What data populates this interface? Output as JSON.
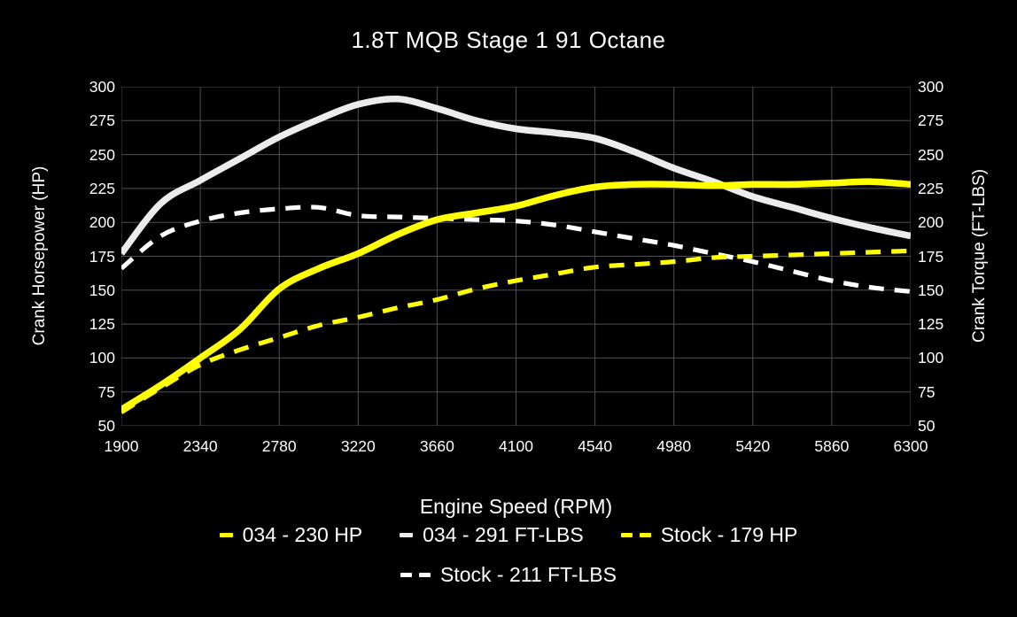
{
  "title": "1.8T MQB Stage 1 91 Octane",
  "axes": {
    "left_label": "Crank Horsepower (HP)",
    "right_label": "Crank Torque (FT-LBS)",
    "x_label": "Engine Speed (RPM)",
    "y_ticks": [
      300,
      275,
      250,
      225,
      200,
      175,
      150,
      125,
      100,
      75,
      50
    ],
    "x_ticks": [
      1900,
      2340,
      2780,
      3220,
      3660,
      4100,
      4540,
      4980,
      5420,
      5860,
      6300
    ]
  },
  "colors": {
    "background": "#000000",
    "grid": "#4f4f4f",
    "text": "#ffffff",
    "yellow": "#ffff00",
    "white_solid": "#ececec",
    "white_dashed": "#ffffff"
  },
  "legend": [
    {
      "label": "034 - 230 HP",
      "color": "#ffff00",
      "style": "solid"
    },
    {
      "label": "034 - 291 FT-LBS",
      "color": "#ececec",
      "style": "solid"
    },
    {
      "label": "Stock - 179 HP",
      "color": "#ffff00",
      "style": "dashed"
    },
    {
      "label": "Stock - 211 FT-LBS",
      "color": "#ffffff",
      "style": "dashed"
    }
  ],
  "legend_rows": [
    [
      0,
      1,
      2
    ],
    [
      3
    ]
  ],
  "chart_data": {
    "type": "line",
    "title": "1.8T MQB Stage 1 91 Octane",
    "xlabel": "Engine Speed (RPM)",
    "ylabel_left": "Crank Horsepower (HP)",
    "ylabel_right": "Crank Torque (FT-LBS)",
    "xlim": [
      1900,
      6300
    ],
    "ylim": [
      50,
      300
    ],
    "y_step": 25,
    "grid": true,
    "legend_position": "bottom",
    "x": [
      1900,
      2120,
      2340,
      2560,
      2780,
      3000,
      3220,
      3440,
      3660,
      3880,
      4100,
      4320,
      4540,
      4760,
      4980,
      5200,
      5420,
      5640,
      5860,
      6080,
      6300
    ],
    "series": [
      {
        "name": "034 - 230 HP",
        "axis": "left",
        "units": "HP",
        "color": "#ffff00",
        "style": "solid",
        "peak": 230,
        "values": [
          62,
          80,
          100,
          121,
          151,
          166,
          177,
          191,
          202,
          207,
          212,
          220,
          226,
          228,
          228,
          227,
          228,
          228,
          229,
          230,
          228
        ]
      },
      {
        "name": "034 - 291 FT-LBS",
        "axis": "right",
        "units": "FT-LBS",
        "color": "#ececec",
        "style": "solid",
        "peak": 291,
        "values": [
          177,
          214,
          231,
          247,
          263,
          276,
          287,
          291,
          284,
          275,
          269,
          266,
          262,
          252,
          240,
          230,
          219,
          211,
          203,
          196,
          190
        ]
      },
      {
        "name": "Stock - 179 HP",
        "axis": "left",
        "units": "HP",
        "color": "#ffff00",
        "style": "dashed",
        "peak": 179,
        "values": [
          60,
          78,
          95,
          106,
          115,
          124,
          130,
          137,
          143,
          151,
          157,
          162,
          167,
          169,
          171,
          174,
          175,
          176,
          177,
          178,
          179
        ]
      },
      {
        "name": "Stock - 211 FT-LBS",
        "axis": "right",
        "units": "FT-LBS",
        "color": "#ffffff",
        "style": "dashed",
        "peak": 211,
        "values": [
          166,
          190,
          201,
          207,
          210,
          211,
          205,
          204,
          203,
          202,
          201,
          198,
          193,
          188,
          183,
          177,
          171,
          164,
          157,
          152,
          149
        ]
      }
    ]
  }
}
